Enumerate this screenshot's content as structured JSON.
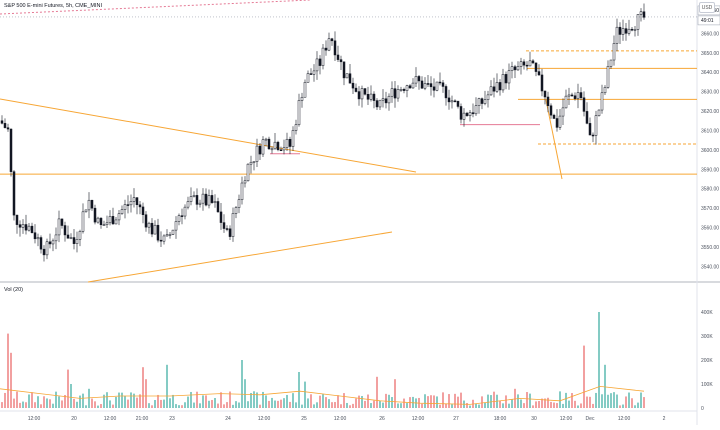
{
  "symbol_title": "S&P 500 E-mini Futures, 5h, CME_MINI",
  "currency": "USD",
  "volume_label": "Vol (20)",
  "last_price_tag": "3668.50",
  "countdown_tag": "49:01",
  "colors": {
    "up": "#26a69a",
    "down": "#ef5350",
    "up_vol": "#84cbc4",
    "down_vol": "#f2a0a0",
    "orange": "#f7a635",
    "pink": "#e57a95",
    "axis_text": "#4c525e",
    "grid": "#f0f3fa"
  },
  "price_axis_ticks": [
    "3660.00",
    "3650.00",
    "3640.00",
    "3630.00",
    "3620.00",
    "3610.00",
    "3600.00",
    "3590.00",
    "3580.00",
    "3570.00",
    "3560.00",
    "3550.00",
    "3540.00"
  ],
  "volume_axis_ticks": [
    "400K",
    "300K",
    "200K",
    "100K",
    "0"
  ],
  "time_axis_labels": [
    "12:00",
    "20",
    "12:00",
    "21:00",
    "23",
    "24",
    "12:00",
    "25",
    "12:00",
    "26",
    "12:00",
    "27",
    "18:00",
    "30",
    "12:00",
    "Dec",
    "12:00",
    "2"
  ],
  "chart_data": {
    "type": "candlestick",
    "price_range": [
      3535,
      3670
    ],
    "volume_range": [
      0,
      400000
    ],
    "last_price": 3668.5,
    "horizontal_levels": [
      {
        "price": 3587.5,
        "style": "solid",
        "color": "orange"
      },
      {
        "price": 3651,
        "style": "dashed",
        "color": "orange"
      },
      {
        "price": 3642,
        "style": "solid",
        "color": "orange"
      },
      {
        "price": 3626,
        "style": "solid",
        "color": "orange"
      },
      {
        "price": 3603,
        "style": "dashed",
        "color": "orange"
      },
      {
        "price": 3613,
        "style": "solid",
        "color": "pink"
      },
      {
        "price": 3598,
        "style": "solid",
        "color": "pink"
      }
    ]
  }
}
